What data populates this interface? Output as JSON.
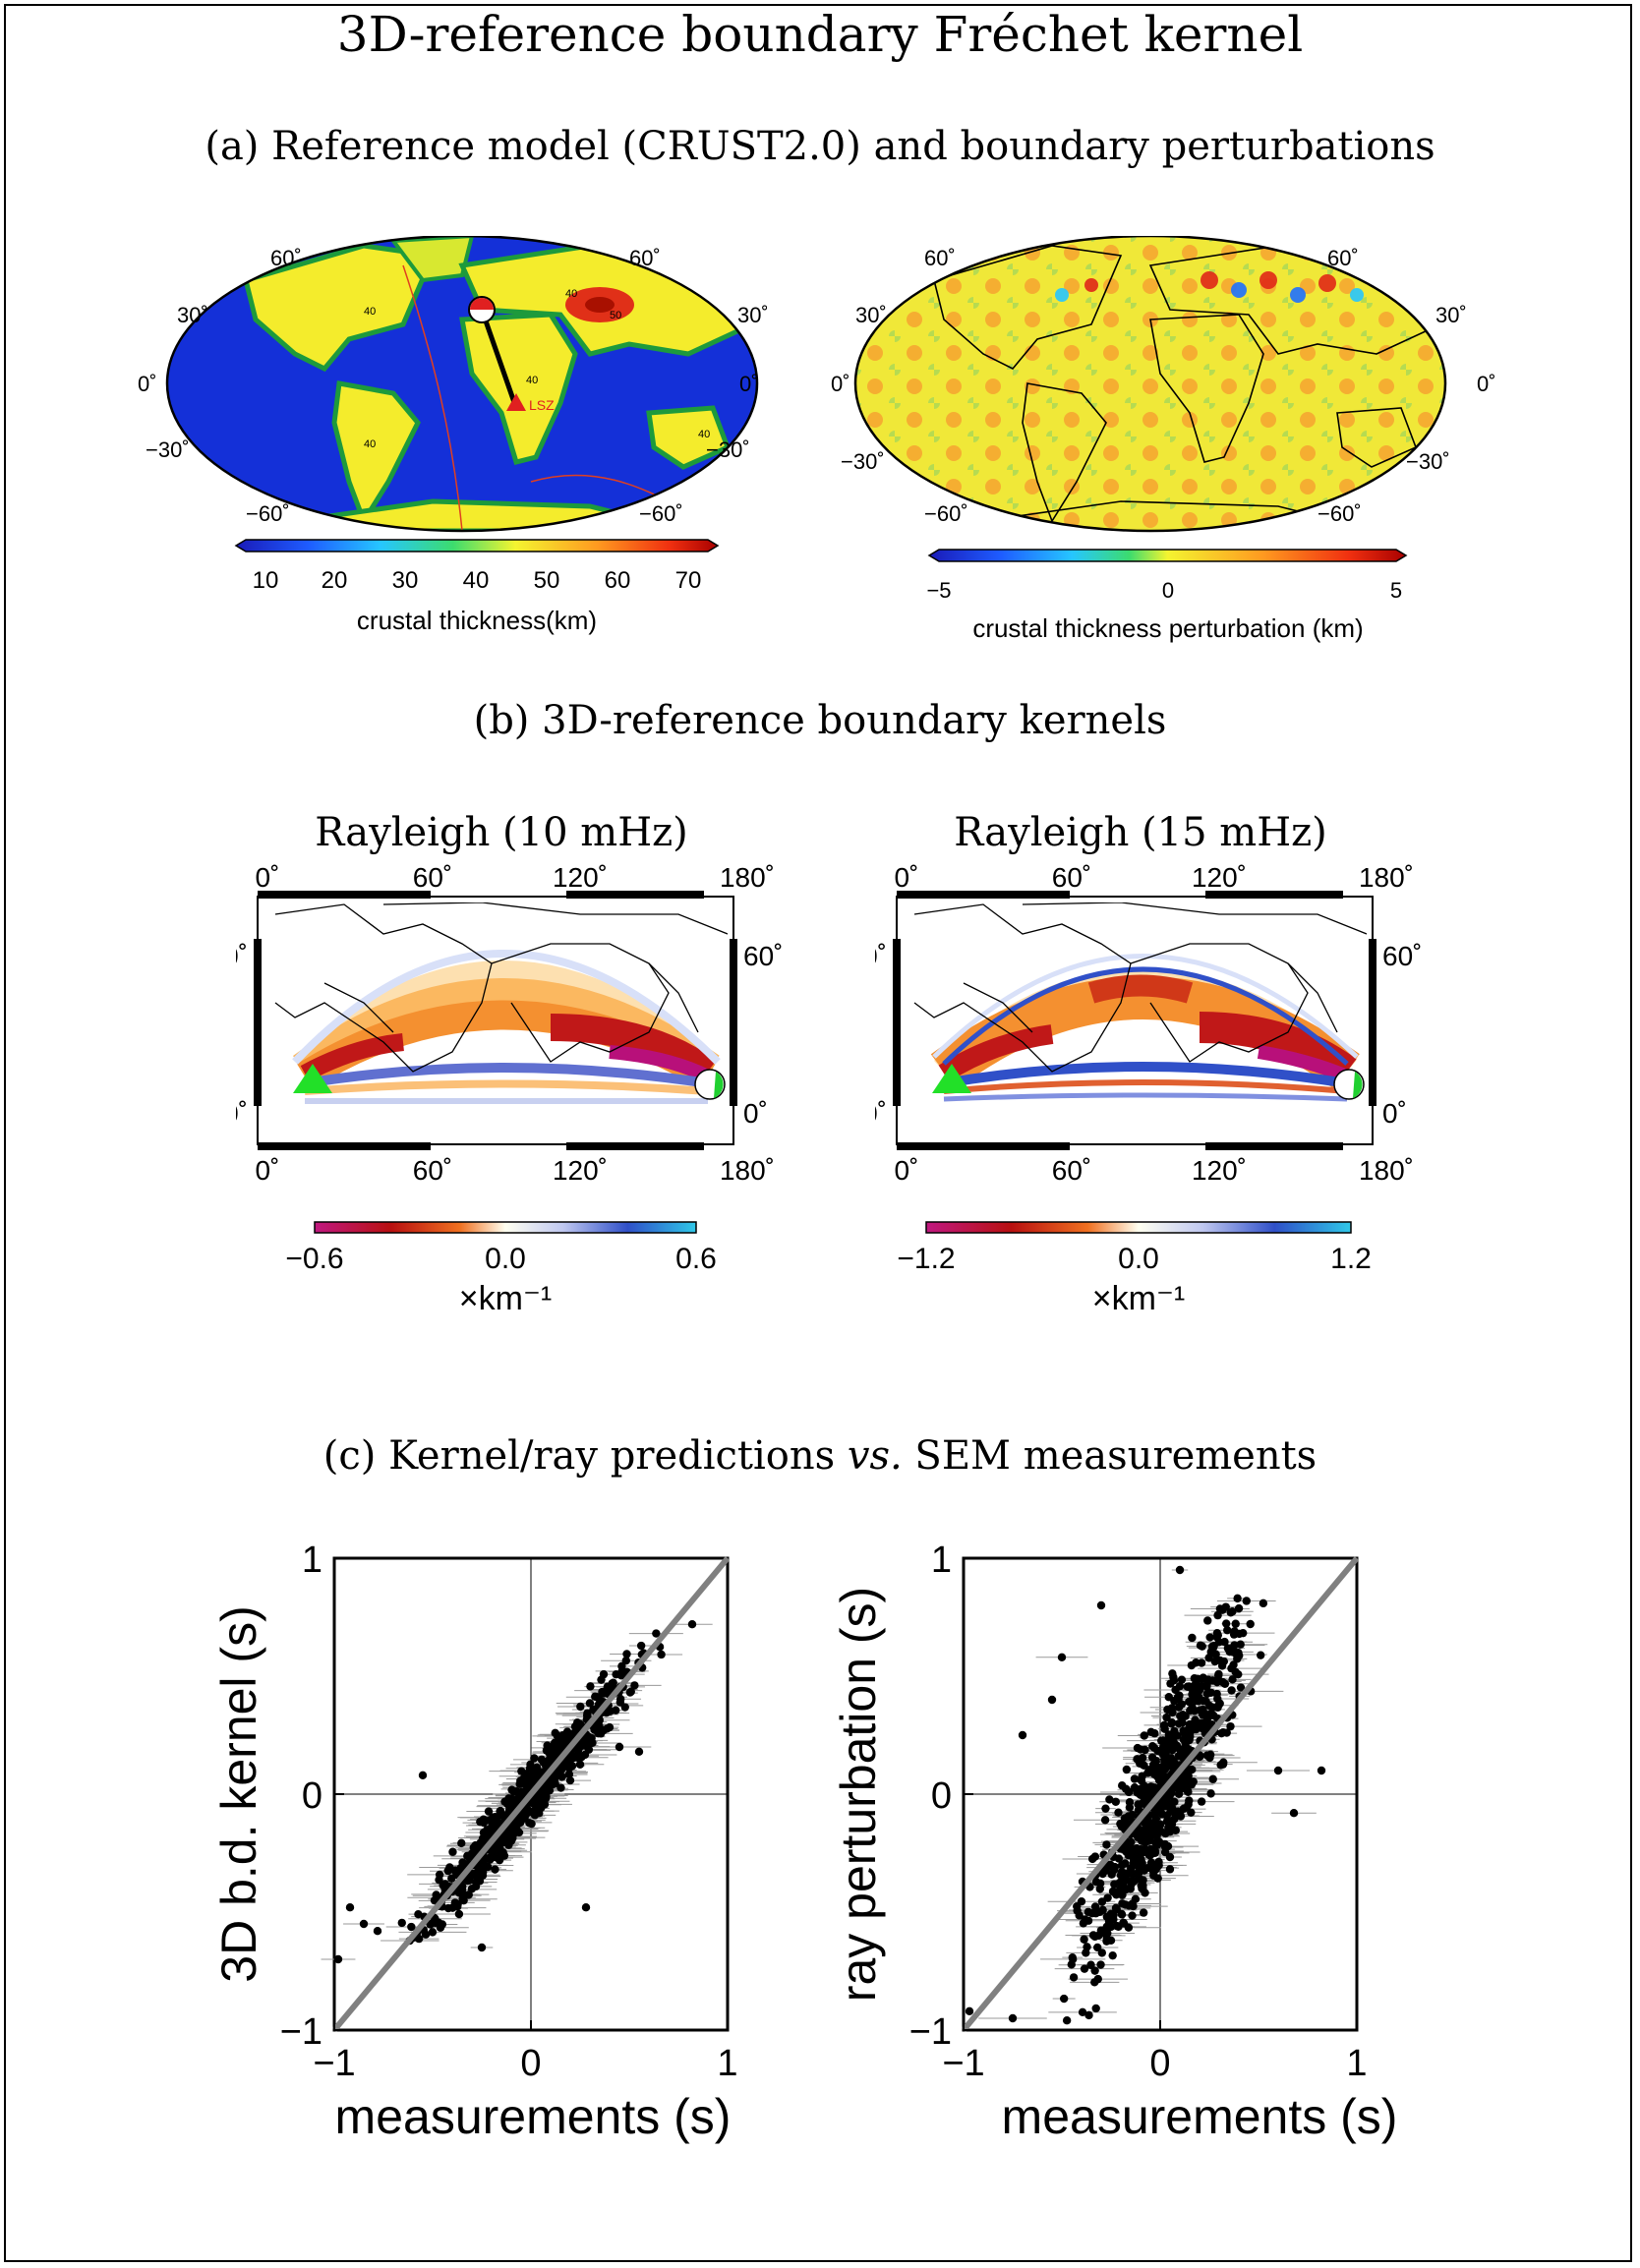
{
  "figure": {
    "title": "3D-reference boundary Fréchet kernel",
    "panel_a": {
      "heading": "(a) Reference model (CRUST2.0) and boundary perturbations",
      "left_map": {
        "lat_labels": [
          "60˚",
          "30˚",
          "0˚",
          "−30˚",
          "−60˚"
        ],
        "colorbar": {
          "ticks": [
            "10",
            "20",
            "30",
            "40",
            "50",
            "60",
            "70"
          ],
          "label": "crustal thickness(km)"
        },
        "contour_labels": [
          "40",
          "40",
          "40",
          "50",
          "40",
          "40"
        ],
        "station_label": "LSZ"
      },
      "right_map": {
        "lat_labels": [
          "60˚",
          "30˚",
          "0˚",
          "−30˚",
          "−60˚"
        ],
        "colorbar": {
          "ticks": [
            "−5",
            "0",
            "5"
          ],
          "label": "crustal thickness perturbation (km)"
        }
      }
    },
    "panel_b": {
      "heading": "(b) 3D-reference boundary kernels",
      "left_map": {
        "title": "Rayleigh (10 mHz)",
        "lon_labels": [
          "0˚",
          "60˚",
          "120˚",
          "180˚"
        ],
        "lat_labels": [
          "60˚",
          "0˚"
        ],
        "colorbar": {
          "ticks": [
            "−0.6",
            "0.0",
            "0.6"
          ],
          "unit": "×km⁻¹"
        }
      },
      "right_map": {
        "title": "Rayleigh (15 mHz)",
        "lon_labels": [
          "0˚",
          "60˚",
          "120˚",
          "180˚"
        ],
        "lat_labels": [
          "60˚",
          "0˚"
        ],
        "colorbar": {
          "ticks": [
            "−1.2",
            "0.0",
            "1.2"
          ],
          "unit": "×km⁻¹"
        }
      }
    },
    "panel_c": {
      "heading_prefix": "(c) Kernel/ray predictions ",
      "heading_italic": "vs.",
      "heading_suffix": " SEM measurements"
    }
  },
  "chart_data": [
    {
      "type": "scatter",
      "xlabel": "measurements (s)",
      "ylabel": "3D b.d. kernel (s)",
      "xlim": [
        -1,
        1
      ],
      "ylim": [
        -1,
        1
      ],
      "x_ticks": [
        "−1",
        "0",
        "1"
      ],
      "y_ticks": [
        "−1",
        "0",
        "1"
      ],
      "reference_line": "y = x",
      "spread": 0.08,
      "outliers": [
        [
          -0.98,
          -0.7
        ],
        [
          -0.92,
          -0.48
        ],
        [
          -0.85,
          -0.55
        ],
        [
          -0.78,
          -0.58
        ],
        [
          -0.25,
          -0.65
        ],
        [
          0.28,
          -0.48
        ],
        [
          0.45,
          0.2
        ],
        [
          0.55,
          0.18
        ],
        [
          0.82,
          0.72
        ],
        [
          -0.55,
          0.08
        ]
      ]
    },
    {
      "type": "scatter",
      "xlabel": "measurements (s)",
      "ylabel": "ray perturbation (s)",
      "xlim": [
        -1,
        1
      ],
      "ylim": [
        -1,
        1
      ],
      "x_ticks": [
        "−1",
        "0",
        "1"
      ],
      "y_ticks": [
        "−1",
        "0",
        "1"
      ],
      "reference_line": "y = x",
      "spread": 0.22,
      "outliers": [
        [
          -0.97,
          -0.92
        ],
        [
          -0.75,
          -0.95
        ],
        [
          -0.3,
          0.8
        ],
        [
          -0.5,
          0.58
        ],
        [
          -0.7,
          0.25
        ],
        [
          0.6,
          0.1
        ],
        [
          0.82,
          0.1
        ],
        [
          0.68,
          -0.08
        ],
        [
          -0.55,
          0.4
        ],
        [
          0.1,
          0.95
        ]
      ]
    }
  ]
}
